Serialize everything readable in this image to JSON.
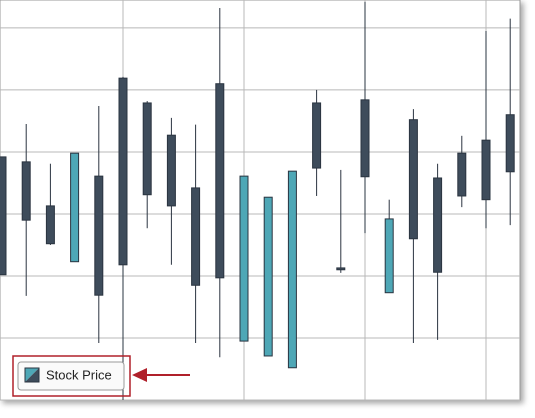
{
  "chart_data": {
    "type": "candlestick",
    "categories": [
      null,
      null,
      null,
      null,
      null,
      null,
      null,
      null,
      null,
      null,
      null,
      null,
      null,
      null,
      null,
      null,
      null,
      null,
      null,
      null,
      null,
      null
    ],
    "series": [
      {
        "name": "Stock Price",
        "up_color": "#4ea7b6",
        "down_color": "#3e4c5b",
        "open": [
          39.2,
          38.4,
          31.3,
          22.3,
          36.1,
          51.9,
          47.9,
          42.7,
          34.2,
          51.0,
          9.5,
          7.1,
          5.2,
          47.9,
          21.3,
          48.4,
          17.3,
          45.2,
          35.8,
          39.8,
          41.9,
          46.0
        ],
        "high": [
          39.2,
          44.5,
          38.1,
          39.8,
          47.4,
          52.1,
          48.2,
          45.5,
          44.4,
          63.2,
          36.1,
          32.7,
          36.9,
          50.0,
          37.1,
          64.2,
          32.3,
          46.9,
          38.1,
          42.6,
          59.5,
          61.5
        ],
        "low": [
          20.2,
          16.8,
          25.0,
          22.3,
          9.2,
          0,
          27.7,
          21.8,
          9.2,
          6.9,
          9.5,
          7.1,
          5.2,
          32.9,
          20.5,
          26.9,
          17.3,
          9.2,
          9.7,
          31.1,
          27.7,
          28.2
        ],
        "close": [
          20.2,
          29.0,
          25.2,
          39.8,
          16.9,
          21.8,
          33.1,
          31.3,
          18.5,
          19.7,
          36.1,
          32.7,
          36.9,
          37.4,
          21.0,
          36.0,
          29.2,
          26.0,
          20.6,
          32.9,
          32.3,
          36.8
        ]
      }
    ],
    "ylim": [
      0,
      64.5
    ],
    "yticks": [
      0,
      10,
      20,
      30,
      40,
      50,
      60
    ],
    "grid": true
  }
}
